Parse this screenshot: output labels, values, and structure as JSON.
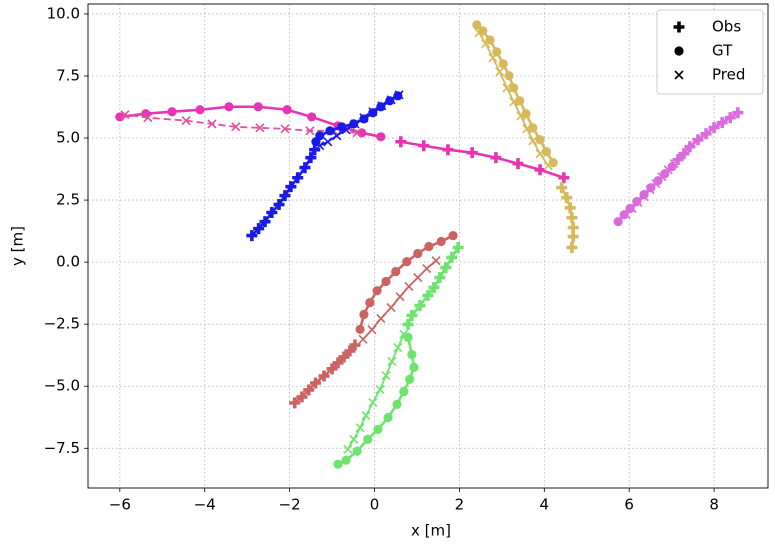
{
  "chart_data": {
    "type": "line",
    "xlabel": "x [m]",
    "ylabel": "y [m]",
    "xlim": [
      -6.75,
      9.27
    ],
    "ylim": [
      -9.1,
      10.4
    ],
    "xticks": [
      {
        "value": -6,
        "label": "−6"
      },
      {
        "value": -4,
        "label": "−4"
      },
      {
        "value": -2,
        "label": "−2"
      },
      0,
      2,
      4,
      6,
      8
    ],
    "yticks": [
      {
        "value": -7.5,
        "label": "−7.5"
      },
      {
        "value": -5,
        "label": "−5.0"
      },
      {
        "value": -2.5,
        "label": "−2.5"
      },
      {
        "value": 0,
        "label": "0.0"
      },
      2.5,
      {
        "value": 5,
        "label": "5.0"
      },
      7.5,
      {
        "value": 10,
        "label": "10.0"
      }
    ],
    "grid": true,
    "legend_position": "upper right",
    "legend": [
      {
        "label": "Obs",
        "marker": "plus"
      },
      {
        "label": "GT",
        "marker": "circle"
      },
      {
        "label": "Pred",
        "marker": "cross"
      }
    ],
    "series": [
      {
        "color": "#e535b4",
        "marker": "plus",
        "linestyle": "solid",
        "x": [
          4.46,
          3.9,
          3.38,
          2.86,
          2.3,
          1.73,
          1.16,
          0.62
        ],
        "y": [
          3.4,
          3.72,
          3.97,
          4.21,
          4.41,
          4.53,
          4.69,
          4.85
        ]
      },
      {
        "color": "#e535b4",
        "marker": "circle",
        "linestyle": "solid",
        "x": [
          0.15,
          -0.3,
          -0.86,
          -1.48,
          -2.06,
          -2.74,
          -3.43,
          -4.11,
          -4.77,
          -5.39,
          -6.0
        ],
        "y": [
          5.05,
          5.21,
          5.49,
          5.85,
          6.14,
          6.26,
          6.26,
          6.14,
          6.06,
          5.98,
          5.85
        ]
      },
      {
        "color": "#e0509f",
        "marker": "cross",
        "linestyle": "dashed",
        "x": [
          -0.41,
          -0.96,
          -1.52,
          -2.11,
          -2.7,
          -3.27,
          -3.83,
          -4.44,
          -5.34,
          -5.88
        ],
        "y": [
          5.21,
          5.29,
          5.29,
          5.37,
          5.41,
          5.45,
          5.57,
          5.7,
          5.82,
          5.94
        ]
      },
      {
        "color": "#1a1ae8",
        "marker": "plus",
        "linestyle": "solid",
        "x": [
          -2.89,
          -2.73,
          -2.58,
          -2.42,
          -2.25,
          -2.11,
          -1.97,
          -1.81,
          -1.64,
          -1.5,
          -1.41
        ],
        "y": [
          1.07,
          1.35,
          1.63,
          2.0,
          2.32,
          2.68,
          3.04,
          3.4,
          3.81,
          4.21,
          4.53
        ]
      },
      {
        "color": "#1a1ae8",
        "marker": "circle",
        "linestyle": "solid",
        "x": [
          -1.38,
          -1.29,
          -1.05,
          -0.77,
          -0.49,
          -0.25,
          -0.04,
          0.15,
          0.36,
          0.55
        ],
        "y": [
          4.85,
          5.09,
          5.29,
          5.45,
          5.57,
          5.77,
          6.02,
          6.26,
          6.5,
          6.7
        ]
      },
      {
        "color": "#1a1ae8",
        "marker": "cross",
        "linestyle": "solid",
        "x": [
          -1.29,
          -1.1,
          -0.89,
          -0.67,
          -0.46,
          -0.25,
          -0.04,
          0.17,
          0.39,
          0.58
        ],
        "y": [
          4.69,
          4.85,
          5.09,
          5.33,
          5.57,
          5.82,
          6.06,
          6.3,
          6.54,
          6.74
        ]
      },
      {
        "color": "#d6b95b",
        "marker": "plus",
        "linestyle": "solid",
        "x": [
          4.65,
          4.68,
          4.68,
          4.65,
          4.61,
          4.53,
          4.41
        ],
        "y": [
          0.59,
          1.03,
          1.39,
          1.79,
          2.19,
          2.6,
          3.0
        ]
      },
      {
        "color": "#d6b95b",
        "marker": "circle",
        "linestyle": "solid",
        "x": [
          4.21,
          4.05,
          3.9,
          3.73,
          3.57,
          3.42,
          3.28,
          3.17,
          3.03,
          2.88,
          2.72,
          2.55,
          2.41
        ],
        "y": [
          4.01,
          4.45,
          4.93,
          5.41,
          5.98,
          6.5,
          7.02,
          7.51,
          7.99,
          8.47,
          8.95,
          9.32,
          9.56
        ]
      },
      {
        "color": "#d6b95b",
        "marker": "cross",
        "linestyle": "solid",
        "x": [
          4.09,
          3.9,
          3.73,
          3.59,
          3.45,
          3.28,
          3.12,
          2.95,
          2.79,
          2.62,
          2.46
        ],
        "y": [
          3.89,
          4.37,
          4.89,
          5.37,
          5.89,
          6.46,
          7.02,
          7.67,
          8.23,
          8.8,
          9.24
        ]
      },
      {
        "color": "#cb6363",
        "marker": "plus",
        "linestyle": "solid",
        "x": [
          -1.88,
          -1.71,
          -1.55,
          -1.39,
          -1.19,
          -1.0,
          -0.86,
          -0.72,
          -0.58,
          -0.46
        ],
        "y": [
          -5.67,
          -5.43,
          -5.15,
          -4.87,
          -4.59,
          -4.3,
          -4.06,
          -3.82,
          -3.58,
          -3.34
        ]
      },
      {
        "color": "#cb6363",
        "marker": "circle",
        "linestyle": "solid",
        "x": [
          -0.34,
          -0.25,
          -0.11,
          0.06,
          0.27,
          0.5,
          0.76,
          1.02,
          1.28,
          1.57,
          1.85
        ],
        "y": [
          -2.71,
          -2.11,
          -1.63,
          -1.15,
          -0.78,
          -0.38,
          0.02,
          0.35,
          0.63,
          0.83,
          1.07
        ]
      },
      {
        "color": "#cb6363",
        "marker": "cross",
        "linestyle": "solid",
        "x": [
          -0.27,
          -0.06,
          0.15,
          0.39,
          0.6,
          0.81,
          1.02,
          1.23,
          1.45
        ],
        "y": [
          -3.11,
          -2.72,
          -2.27,
          -1.83,
          -1.39,
          -0.98,
          -0.62,
          -0.26,
          0.06
        ]
      },
      {
        "color": "#6ee46e",
        "marker": "plus",
        "linestyle": "solid",
        "x": [
          1.97,
          1.82,
          1.68,
          1.54,
          1.4,
          1.26,
          1.07,
          0.88,
          0.79
        ],
        "y": [
          0.59,
          0.19,
          -0.22,
          -0.62,
          -1.02,
          -1.34,
          -1.75,
          -2.15,
          -2.51
        ]
      },
      {
        "color": "#6ee46e",
        "marker": "circle",
        "linestyle": "solid",
        "x": [
          0.79,
          0.88,
          0.93,
          0.83,
          0.69,
          0.53,
          0.32,
          0.08,
          -0.16,
          -0.41,
          -0.67,
          -0.86
        ],
        "y": [
          -3.03,
          -3.72,
          -4.24,
          -4.72,
          -5.21,
          -5.73,
          -6.26,
          -6.74,
          -7.14,
          -7.62,
          -7.98,
          -8.14
        ]
      },
      {
        "color": "#6ee46e",
        "marker": "cross",
        "linestyle": "solid",
        "x": [
          0.69,
          0.55,
          0.41,
          0.27,
          0.13,
          -0.04,
          -0.2,
          -0.34,
          -0.49,
          -0.63
        ],
        "y": [
          -2.91,
          -3.44,
          -4.0,
          -4.57,
          -5.13,
          -5.66,
          -6.18,
          -6.67,
          -7.14,
          -7.54
        ]
      },
      {
        "color": "#da6bdc",
        "marker": "plus",
        "linestyle": "solid",
        "x": [
          8.56,
          8.38,
          8.19,
          8.0,
          7.81,
          7.62,
          7.43,
          7.29,
          7.15
        ],
        "y": [
          6.02,
          5.82,
          5.62,
          5.42,
          5.17,
          4.93,
          4.65,
          4.37,
          4.13
        ]
      },
      {
        "color": "#da6bdc",
        "marker": "circle",
        "linestyle": "solid",
        "x": [
          7.01,
          6.84,
          6.68,
          6.51,
          6.35,
          6.18,
          6.02,
          5.88,
          5.74
        ],
        "y": [
          3.85,
          3.56,
          3.28,
          3.0,
          2.72,
          2.44,
          2.16,
          1.91,
          1.63
        ]
      },
      {
        "color": "#da6bdc",
        "marker": "cross",
        "linestyle": "solid",
        "x": [
          7.06,
          6.92,
          6.77,
          6.63,
          6.49,
          6.35,
          6.21,
          6.07,
          5.93
        ],
        "y": [
          3.97,
          3.72,
          3.44,
          3.16,
          2.92,
          2.64,
          2.4,
          2.16,
          1.91
        ]
      }
    ]
  }
}
